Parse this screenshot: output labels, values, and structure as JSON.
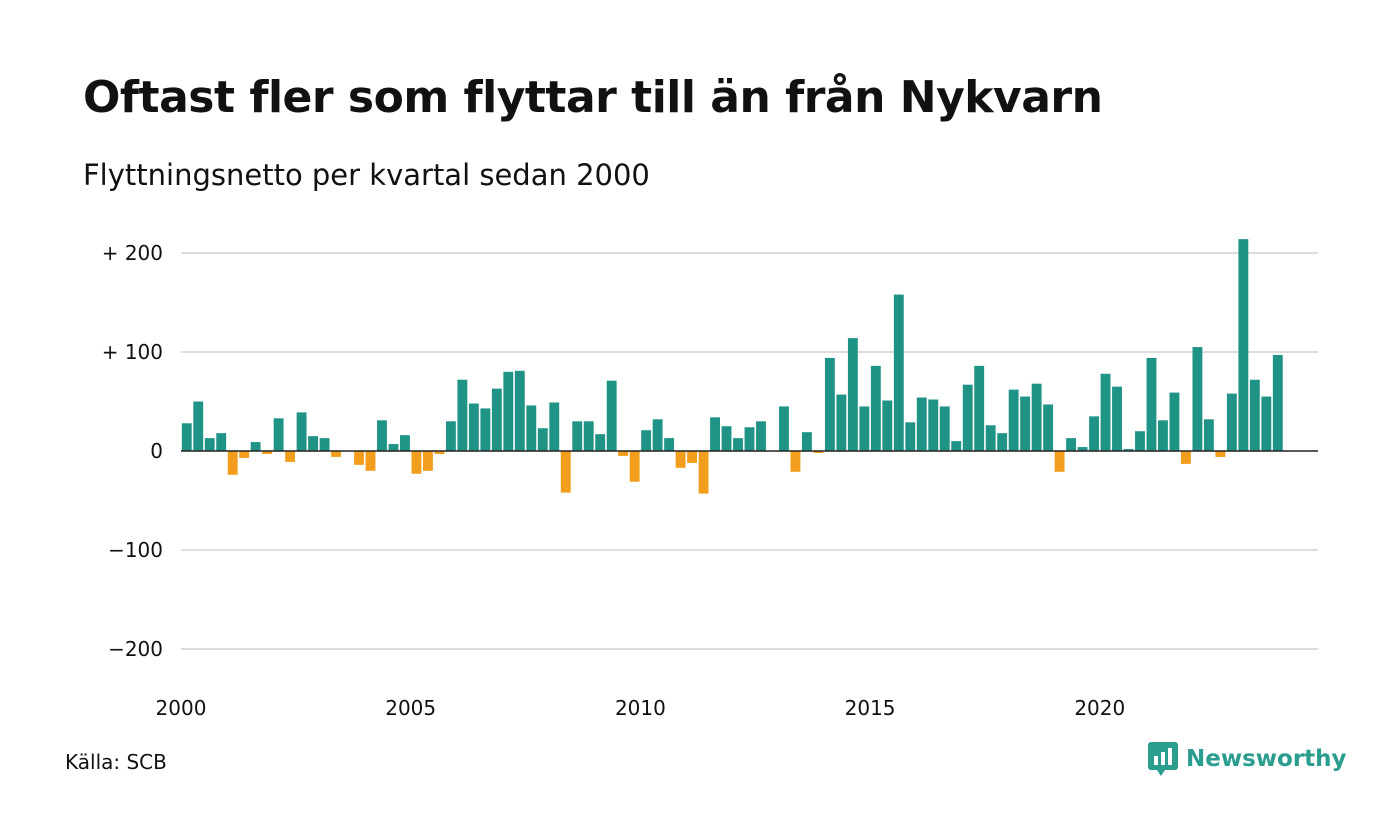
{
  "title": "Oftast fler som flyttar till än från Nykvarn",
  "subtitle": "Flyttningsnetto per kvartal sedan 2000",
  "source": "Källa: SCB",
  "brand": {
    "name": "Newsworthy",
    "icon": "newsworthy-logo-icon",
    "color": "#2a9d8f"
  },
  "colors": {
    "positive": "#1f9486",
    "negative": "#f29e1c",
    "grid": "#dddddd",
    "zero_line": "#222222"
  },
  "chart_data": {
    "type": "bar",
    "title": "Oftast fler som flyttar till än från Nykvarn",
    "subtitle": "Flyttningsnetto per kvartal sedan 2000",
    "xlabel": "",
    "ylabel": "",
    "ylim": [
      -225,
      225
    ],
    "xlim": [
      2000,
      2024.75
    ],
    "grid": true,
    "y_ticks": [
      200,
      100,
      0,
      -100,
      -200
    ],
    "y_tick_labels": [
      "+ 200",
      "+ 100",
      "0",
      "−100",
      "−200"
    ],
    "x_ticks": [
      2000,
      2005,
      2010,
      2015,
      2020
    ],
    "x_tick_labels": [
      "2000",
      "2005",
      "2010",
      "2015",
      "2020"
    ],
    "categories": [
      "2000 K1",
      "2000 K2",
      "2000 K3",
      "2000 K4",
      "2001 K1",
      "2001 K2",
      "2001 K3",
      "2001 K4",
      "2002 K1",
      "2002 K2",
      "2002 K3",
      "2002 K4",
      "2003 K1",
      "2003 K2",
      "2003 K3",
      "2003 K4",
      "2004 K1",
      "2004 K2",
      "2004 K3",
      "2004 K4",
      "2005 K1",
      "2005 K2",
      "2005 K3",
      "2005 K4",
      "2006 K1",
      "2006 K2",
      "2006 K3",
      "2006 K4",
      "2007 K1",
      "2007 K2",
      "2007 K3",
      "2007 K4",
      "2008 K1",
      "2008 K2",
      "2008 K3",
      "2008 K4",
      "2009 K1",
      "2009 K2",
      "2009 K3",
      "2009 K4",
      "2010 K1",
      "2010 K2",
      "2010 K3",
      "2010 K4",
      "2011 K1",
      "2011 K2",
      "2011 K3",
      "2011 K4",
      "2012 K1",
      "2012 K2",
      "2012 K3",
      "2012 K4",
      "2013 K1",
      "2013 K2",
      "2013 K3",
      "2013 K4",
      "2014 K1",
      "2014 K2",
      "2014 K3",
      "2014 K4",
      "2015 K1",
      "2015 K2",
      "2015 K3",
      "2015 K4",
      "2016 K1",
      "2016 K2",
      "2016 K3",
      "2016 K4",
      "2017 K1",
      "2017 K2",
      "2017 K3",
      "2017 K4",
      "2018 K1",
      "2018 K2",
      "2018 K3",
      "2018 K4",
      "2019 K1",
      "2019 K2",
      "2019 K3",
      "2019 K4",
      "2020 K1",
      "2020 K2",
      "2020 K3",
      "2020 K4",
      "2021 K1",
      "2021 K2",
      "2021 K3",
      "2021 K4",
      "2022 K1",
      "2022 K2",
      "2022 K3",
      "2022 K4",
      "2023 K1",
      "2023 K2",
      "2023 K3",
      "2023 K4",
      "2024 K1",
      "2024 K2",
      "2024 K3"
    ],
    "values": [
      28,
      50,
      13,
      18,
      -24,
      -7,
      9,
      -3,
      33,
      -11,
      39,
      15,
      13,
      -6,
      0,
      -14,
      -20,
      31,
      7,
      16,
      -23,
      -20,
      -3,
      30,
      72,
      48,
      43,
      63,
      80,
      81,
      46,
      23,
      49,
      -42,
      30,
      30,
      17,
      71,
      -5,
      -31,
      21,
      32,
      13,
      -17,
      -12,
      -43,
      34,
      25,
      13,
      24,
      30,
      0,
      45,
      -21,
      19,
      -2,
      94,
      57,
      114,
      45,
      86,
      51,
      158,
      29,
      54,
      52,
      45,
      10,
      67,
      86,
      26,
      18,
      62,
      55,
      68,
      47,
      -21,
      13,
      4,
      35,
      78,
      65,
      2,
      20,
      94,
      31,
      59,
      -13,
      105,
      32,
      -6,
      58,
      214,
      72,
      55,
      97,
      null,
      null,
      null
    ]
  }
}
